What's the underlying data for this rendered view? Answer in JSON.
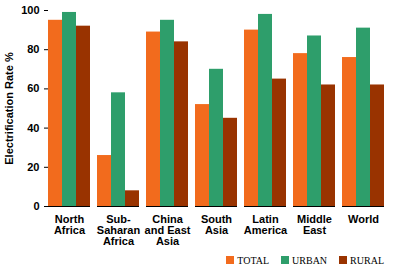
{
  "chart_data": {
    "type": "bar",
    "y_label": "Electrification Rate %",
    "categories": [
      "North\nAfrica",
      "Sub-\nSaharan\nAfrica",
      "China\nand East\nAsia",
      "South\nAsia",
      "Latin\nAmerica",
      "Middle\nEast",
      "World"
    ],
    "series": [
      {
        "name": "TOTAL",
        "color": "#f26b1d",
        "values": [
          95,
          26,
          89,
          52,
          90,
          78,
          76
        ]
      },
      {
        "name": "URBAN",
        "color": "#2e9e6b",
        "values": [
          99,
          58,
          95,
          70,
          98,
          87,
          91
        ]
      },
      {
        "name": "RURAL",
        "color": "#993300",
        "values": [
          92,
          8,
          84,
          45,
          65,
          62,
          62
        ]
      }
    ],
    "ylim": [
      0,
      100
    ],
    "yticks": [
      0,
      20,
      40,
      60,
      80,
      100
    ],
    "grid": false,
    "legend": "bottom-right"
  }
}
